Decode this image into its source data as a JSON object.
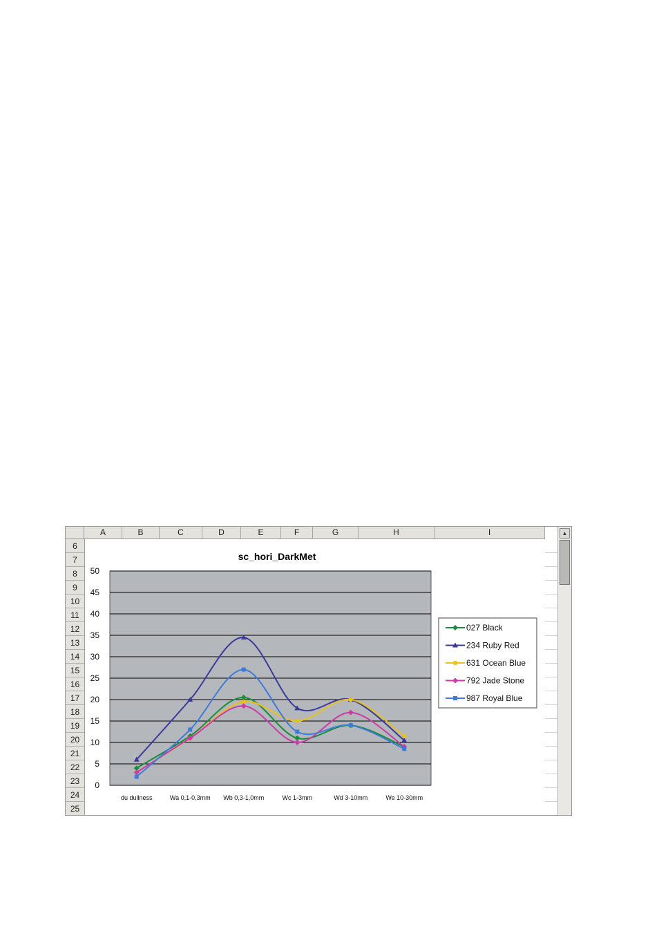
{
  "spreadsheet": {
    "columns": [
      "A",
      "B",
      "C",
      "D",
      "E",
      "F",
      "G",
      "H",
      "I"
    ],
    "rows": [
      "6",
      "7",
      "8",
      "9",
      "10",
      "11",
      "12",
      "13",
      "14",
      "15",
      "16",
      "17",
      "18",
      "19",
      "20",
      "21",
      "22",
      "23",
      "24",
      "25"
    ]
  },
  "chart_data": {
    "type": "line",
    "title": "sc_hori_DarkMet",
    "categories": [
      "du dullness",
      "Wa 0,1-0,3mm",
      "Wb 0,3-1,0mm",
      "Wc 1-3mm",
      "Wd 3-10mm",
      "We 10-30mm"
    ],
    "ylim": [
      0,
      50
    ],
    "yticks": [
      "0",
      "5",
      "10",
      "15",
      "20",
      "25",
      "30",
      "35",
      "40",
      "45",
      "50"
    ],
    "grid": true,
    "plot_background": "#b4b8bc",
    "legend_position": "right",
    "series": [
      {
        "name": "027 Black",
        "color": "#1a8c3a",
        "marker": "diamond",
        "values": [
          4,
          11.5,
          20.5,
          11,
          14,
          9
        ]
      },
      {
        "name": "234 Ruby Red",
        "color": "#3b3a9a",
        "marker": "triangle",
        "values": [
          6,
          20,
          34.5,
          18,
          20,
          10.5
        ]
      },
      {
        "name": "631 Ocean Blue",
        "color": "#e8c21a",
        "marker": "circle",
        "values": [
          3,
          11,
          19.5,
          15,
          20,
          11.5
        ]
      },
      {
        "name": "792 Jade Stone",
        "color": "#cc3aa8",
        "marker": "diamond",
        "values": [
          3,
          11,
          18.5,
          10,
          17,
          9
        ]
      },
      {
        "name": "987 Royal Blue",
        "color": "#3f7ad8",
        "marker": "square",
        "values": [
          2,
          13,
          27,
          12.5,
          14,
          8.5
        ]
      }
    ]
  }
}
